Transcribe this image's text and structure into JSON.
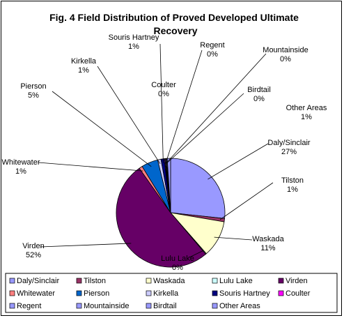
{
  "chart_data": {
    "type": "pie",
    "title_line1": "Fig. 4 Field Distribution of Proved Developed Ultimate",
    "title_line2": "Recovery",
    "slices": [
      {
        "name": "Daly/Sinclair",
        "value": 27,
        "label": "27%",
        "color": "#9999ff"
      },
      {
        "name": "Tilston",
        "value": 1,
        "label": "1%",
        "color": "#993366"
      },
      {
        "name": "Waskada",
        "value": 11,
        "label": "11%",
        "color": "#ffffcc"
      },
      {
        "name": "Lulu Lake",
        "value": 0,
        "label": "0%",
        "color": "#ccffff"
      },
      {
        "name": "Virden",
        "value": 52,
        "label": "52%",
        "color": "#660066"
      },
      {
        "name": "Whitewater",
        "value": 1,
        "label": "1%",
        "color": "#ff8080"
      },
      {
        "name": "Pierson",
        "value": 5,
        "label": "5%",
        "color": "#0066cc"
      },
      {
        "name": "Kirkella",
        "value": 1,
        "label": "1%",
        "color": "#ccccff"
      },
      {
        "name": "Souris Hartney",
        "value": 1,
        "label": "1%",
        "color": "#000080"
      },
      {
        "name": "Coulter",
        "value": 0,
        "label": "0%",
        "color": "#ff00ff"
      },
      {
        "name": "Regent",
        "value": 0,
        "label": "0%",
        "color": "#9999ff"
      },
      {
        "name": "Mountainside",
        "value": 0,
        "label": "0%",
        "color": "#9999ff"
      },
      {
        "name": "Birdtail",
        "value": 0,
        "label": "0%",
        "color": "#9999ff"
      },
      {
        "name": "Other Areas",
        "value": 1,
        "label": "1%",
        "color": "#9999ff"
      }
    ],
    "legend_placement": "bottom"
  }
}
